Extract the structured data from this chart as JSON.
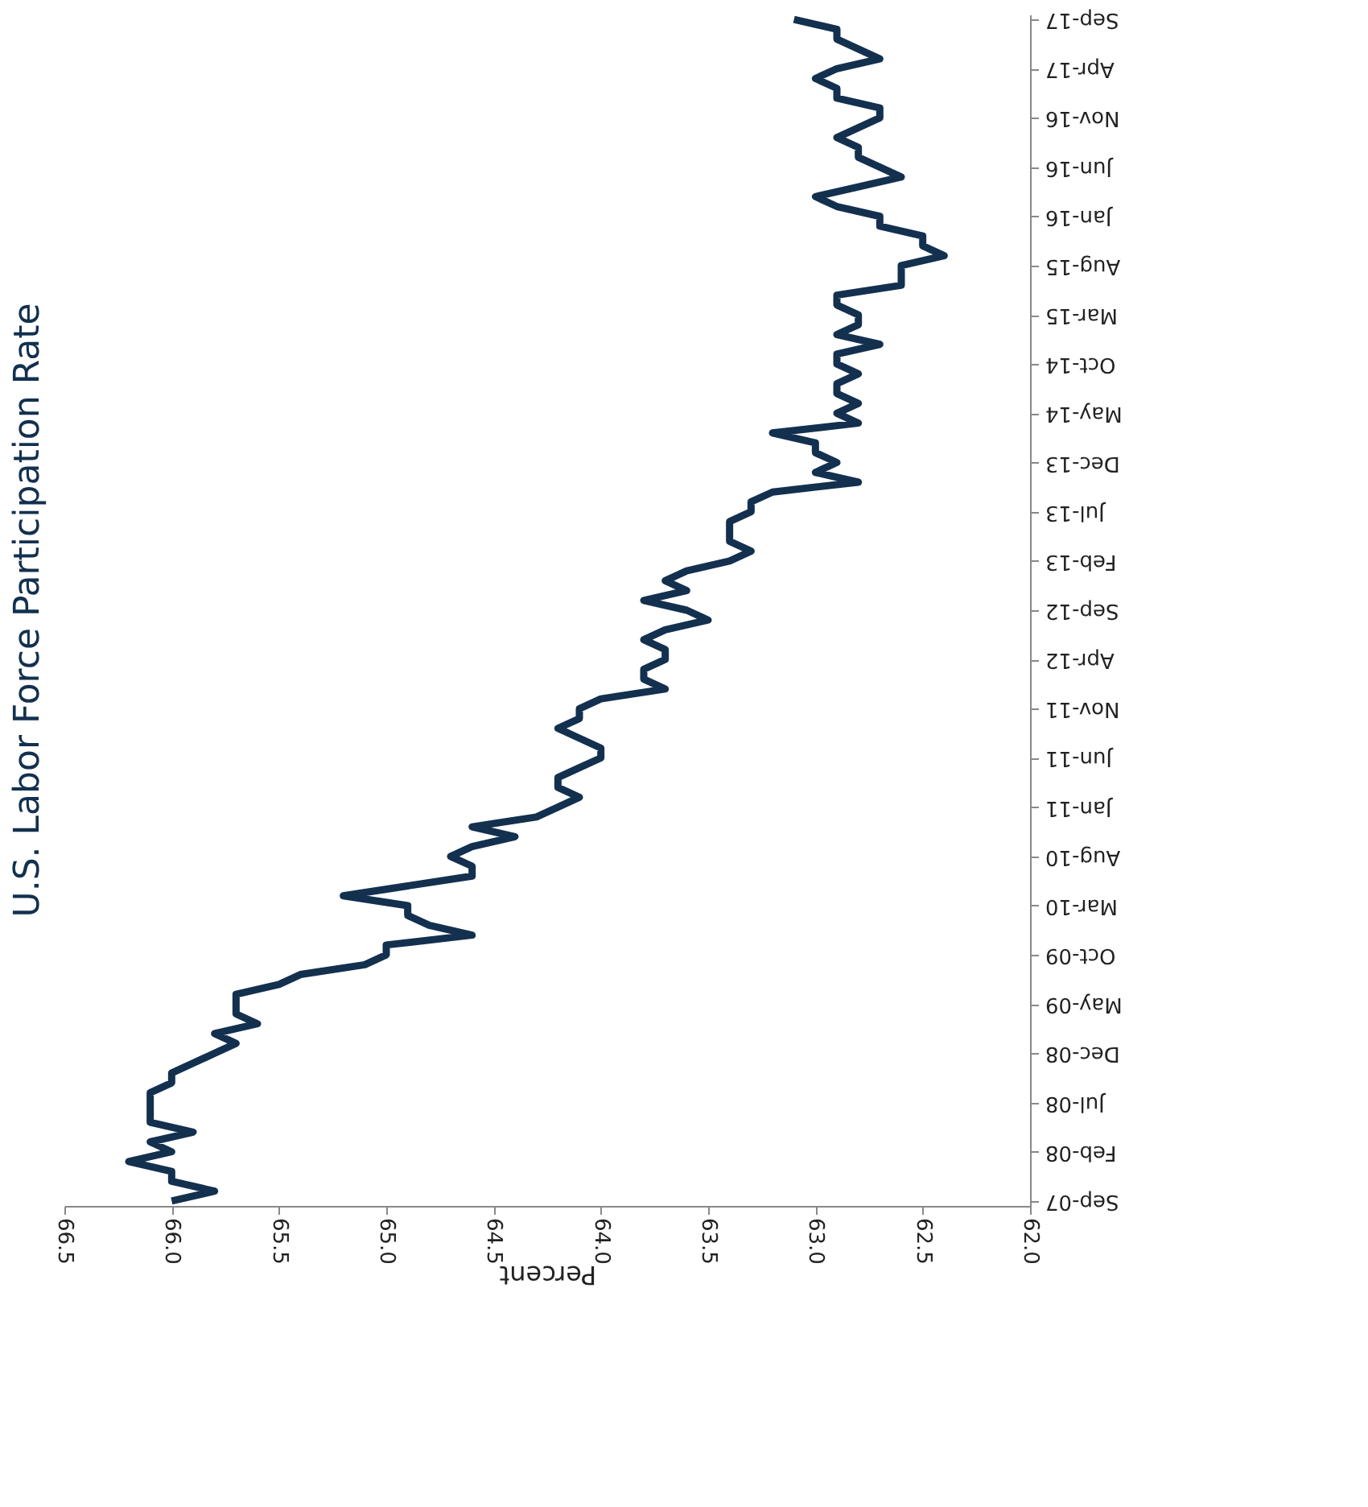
{
  "chart_data": {
    "type": "line",
    "title": "U.S. Labor Force Participation Rate",
    "xlabel": "Percent",
    "orientation": "horizontal",
    "categories": [
      "Sep-17",
      null,
      null,
      null,
      null,
      "Apr-17",
      null,
      null,
      null,
      null,
      "Nov-16",
      null,
      null,
      null,
      null,
      "Jun-16",
      null,
      null,
      null,
      null,
      "Jan-16",
      null,
      null,
      null,
      null,
      "Aug-15",
      null,
      null,
      null,
      null,
      "Mar-15",
      null,
      null,
      null,
      null,
      "Oct-14",
      null,
      null,
      null,
      null,
      "May-14",
      null,
      null,
      null,
      null,
      "Dec-13",
      null,
      null,
      null,
      null,
      "Jul-13",
      null,
      null,
      null,
      null,
      "Feb-13",
      null,
      null,
      null,
      null,
      "Sep-12",
      null,
      null,
      null,
      null,
      "Apr-12",
      null,
      null,
      null,
      null,
      "Nov-11",
      null,
      null,
      null,
      null,
      "Jun-11",
      null,
      null,
      null,
      null,
      "Jan-11",
      null,
      null,
      null,
      null,
      "Aug-10",
      null,
      null,
      null,
      null,
      "Mar-10",
      null,
      null,
      null,
      null,
      "Oct-09",
      null,
      null,
      null,
      null,
      "May-09",
      null,
      null,
      null,
      null,
      "Dec-08",
      null,
      null,
      null,
      null,
      "Jul-08",
      null,
      null,
      null,
      null,
      "Feb-08",
      null,
      null,
      null,
      null,
      "Sep-07"
    ],
    "series": [
      {
        "color": "#13304f",
        "values": [
          63.1,
          62.9,
          62.9,
          62.8,
          62.7,
          62.9,
          63.0,
          62.9,
          62.9,
          62.7,
          62.7,
          62.8,
          62.9,
          62.8,
          62.8,
          62.7,
          62.6,
          62.8,
          63.0,
          62.9,
          62.7,
          62.7,
          62.5,
          62.5,
          62.4,
          62.6,
          62.6,
          62.6,
          62.9,
          62.9,
          62.8,
          62.8,
          62.9,
          62.7,
          62.9,
          62.9,
          62.8,
          62.9,
          62.9,
          62.8,
          62.9,
          62.8,
          63.2,
          63.0,
          63.0,
          62.9,
          63.0,
          62.8,
          63.2,
          63.3,
          63.3,
          63.4,
          63.4,
          63.4,
          63.3,
          63.4,
          63.6,
          63.7,
          63.6,
          63.8,
          63.6,
          63.5,
          63.7,
          63.8,
          63.7,
          63.7,
          63.8,
          63.8,
          63.7,
          64.0,
          64.1,
          64.1,
          64.2,
          64.1,
          64.0,
          64.0,
          64.1,
          64.2,
          64.2,
          64.1,
          64.2,
          64.3,
          64.6,
          64.4,
          64.6,
          64.7,
          64.6,
          64.6,
          64.9,
          65.2,
          64.9,
          64.9,
          64.8,
          64.6,
          65.0,
          65.0,
          65.1,
          65.4,
          65.5,
          65.7,
          65.7,
          65.7,
          65.6,
          65.8,
          65.7,
          65.8,
          65.9,
          66.0,
          66.0,
          66.1,
          66.1,
          66.1,
          66.1,
          65.9,
          66.1,
          66.0,
          66.2,
          66.0,
          66.0,
          65.8,
          66.0
        ]
      }
    ],
    "xlim": [
      66.5,
      62.0
    ],
    "xticks": [
      66.5,
      {
        "value": 66,
        "label": "66.0"
      },
      65.5,
      {
        "value": 65,
        "label": "65.0"
      },
      64.5,
      {
        "value": 64,
        "label": "64.0"
      },
      63.5,
      {
        "value": 63,
        "label": "63.0"
      },
      62.5,
      {
        "value": 62,
        "label": "62.0"
      }
    ],
    "grid": false
  }
}
